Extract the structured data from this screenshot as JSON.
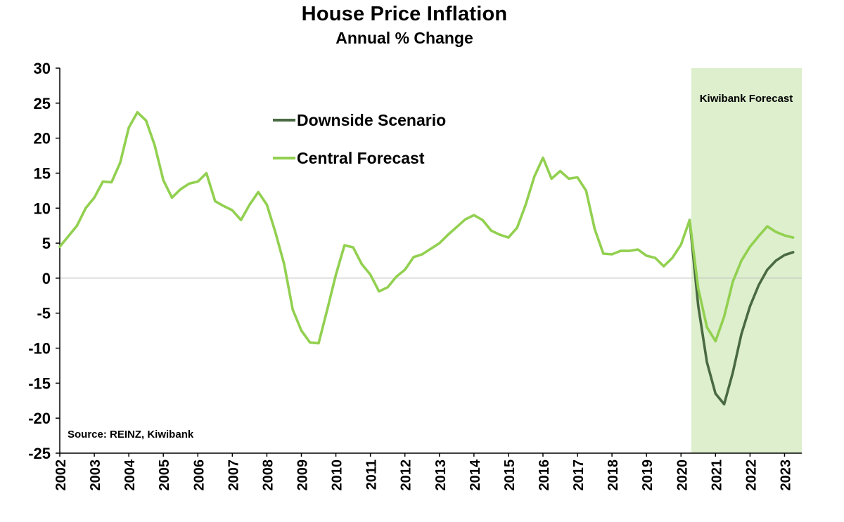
{
  "chart_data": {
    "type": "line",
    "title": "House Price Inflation",
    "subtitle": "Annual % Change",
    "xlabel": "",
    "ylabel": "",
    "ylim": [
      -25,
      30
    ],
    "ytick_step": 5,
    "xlim": [
      2002,
      2023.5
    ],
    "xticks": [
      2002,
      2003,
      2004,
      2005,
      2006,
      2007,
      2008,
      2009,
      2010,
      2011,
      2012,
      2013,
      2014,
      2015,
      2016,
      2017,
      2018,
      2019,
      2020,
      2021,
      2022,
      2023
    ],
    "grid": "zero-line-only",
    "legend_position": "upper-left-inside",
    "forecast_band": {
      "from": 2020.3,
      "to": 2023.5,
      "label": "Kiwibank Forecast",
      "color": "#ddefcd"
    },
    "zero_line_color": "#bfbfbf",
    "axis_color": "#000000",
    "source": "Source: REINZ, Kiwibank",
    "series": [
      {
        "name": "Downside Scenario",
        "color": "#4a6a42",
        "x_start": 2020.25,
        "x_step": 0.25,
        "values": [
          8.3,
          -4,
          -12,
          -16.5,
          -18,
          -13.5,
          -8,
          -4,
          -1,
          1.2,
          2.5,
          3.3,
          3.7
        ]
      },
      {
        "name": "Central Forecast",
        "color": "#92d050",
        "x_start": 2002,
        "x_step": 0.25,
        "values": [
          4.5,
          6,
          7.5,
          10,
          11.5,
          13.8,
          13.7,
          16.5,
          21.5,
          23.7,
          22.5,
          19,
          14,
          11.5,
          12.7,
          13.5,
          13.8,
          15.0,
          11,
          10.3,
          9.7,
          8.3,
          10.5,
          12.3,
          10.5,
          6.5,
          2,
          -4.5,
          -7.5,
          -9.2,
          -9.3,
          -4.5,
          0.5,
          4.7,
          4.4,
          2,
          0.5,
          -1.9,
          -1.3,
          0.2,
          1.2,
          3.0,
          3.4,
          4.2,
          5.0,
          6.2,
          7.3,
          8.4,
          9.0,
          8.3,
          6.8,
          6.2,
          5.8,
          7.2,
          10.5,
          14.5,
          17.2,
          14.2,
          15.3,
          14.2,
          14.4,
          12.5,
          7,
          3.5,
          3.4,
          3.9,
          3.9,
          4.1,
          3.2,
          2.9,
          1.7,
          2.9,
          4.8,
          8.3,
          -1.5,
          -7,
          -9,
          -5.5,
          -0.5,
          2.5,
          4.5,
          6,
          7.4,
          6.6,
          6.1,
          5.8
        ]
      }
    ]
  }
}
